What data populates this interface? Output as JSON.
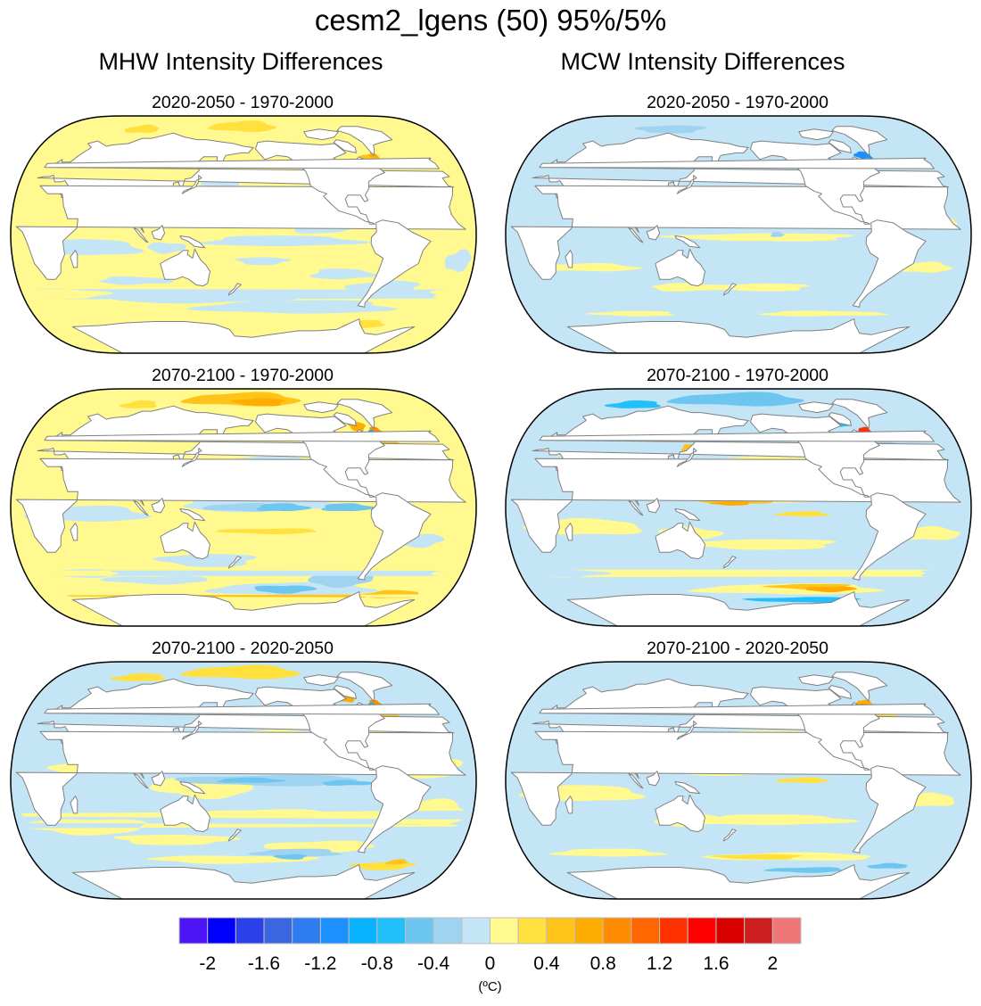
{
  "title": "cesm2_lgens (50) 95%/5%",
  "columns": [
    {
      "title": "MHW Intensity Differences"
    },
    {
      "title": "MCW Intensity Differences"
    }
  ],
  "panels": [
    {
      "id": "mhw-2020-2050-minus-1970-2000",
      "column": "MHW",
      "title": "2020-2050 - 1970-2000",
      "pattern": "mhw1"
    },
    {
      "id": "mcw-2020-2050-minus-1970-2000",
      "column": "MCW",
      "title": "2020-2050 - 1970-2000",
      "pattern": "mcw1"
    },
    {
      "id": "mhw-2070-2100-minus-1970-2000",
      "column": "MHW",
      "title": "2070-2100 - 1970-2000",
      "pattern": "mhw2"
    },
    {
      "id": "mcw-2070-2100-minus-1970-2000",
      "column": "MCW",
      "title": "2070-2100 - 1970-2000",
      "pattern": "mcw2"
    },
    {
      "id": "mhw-2070-2100-minus-2020-2050",
      "column": "MHW",
      "title": "2070-2100 - 2020-2050",
      "pattern": "mhw3"
    },
    {
      "id": "mcw-2070-2100-minus-2020-2050",
      "column": "MCW",
      "title": "2070-2100 - 2020-2050",
      "pattern": "mcw3"
    }
  ],
  "chart_data": {
    "type": "heatmap",
    "title": "cesm2_lgens (50) 95%/5%",
    "subplots": [
      "MHW Intensity Differences: 2020-2050 - 1970-2000",
      "MCW Intensity Differences: 2020-2050 - 1970-2000",
      "MHW Intensity Differences: 2070-2100 - 1970-2000",
      "MCW Intensity Differences: 2070-2100 - 1970-2000",
      "MHW Intensity Differences: 2070-2100 - 2020-2050",
      "MCW Intensity Differences: 2070-2100 - 2020-2050"
    ],
    "projection": "Robinson, centered on 180°",
    "colorbar": {
      "levels": [
        -2,
        -1.8,
        -1.6,
        -1.4,
        -1.2,
        -1,
        -0.8,
        -0.6,
        -0.4,
        -0.2,
        0,
        0.2,
        0.4,
        0.6,
        0.8,
        1,
        1.2,
        1.4,
        1.6,
        1.8,
        2
      ],
      "tick_labels": [
        "-2",
        "-1.6",
        "-1.2",
        "-0.8",
        "-0.4",
        "0",
        "0.4",
        "0.8",
        "1.2",
        "1.6",
        "2"
      ],
      "tick_values": [
        -2,
        -1.6,
        -1.2,
        -0.8,
        -0.4,
        0,
        0.4,
        0.8,
        1.2,
        1.6,
        2
      ],
      "colors": [
        "#4d14f5",
        "#0000ff",
        "#2a40e8",
        "#3a66e0",
        "#2e7cf0",
        "#1c90ff",
        "#08b2ff",
        "#22c0fa",
        "#6cc6f0",
        "#9fd3f0",
        "#c4e5f6",
        "#fff98f",
        "#ffe03c",
        "#ffc31a",
        "#ffac00",
        "#ff8c00",
        "#ff6600",
        "#ff3300",
        "#ff0000",
        "#d90000",
        "#cc1e1e",
        "#ef7777"
      ],
      "units": "(ºC)",
      "placement": "bottom"
    }
  }
}
